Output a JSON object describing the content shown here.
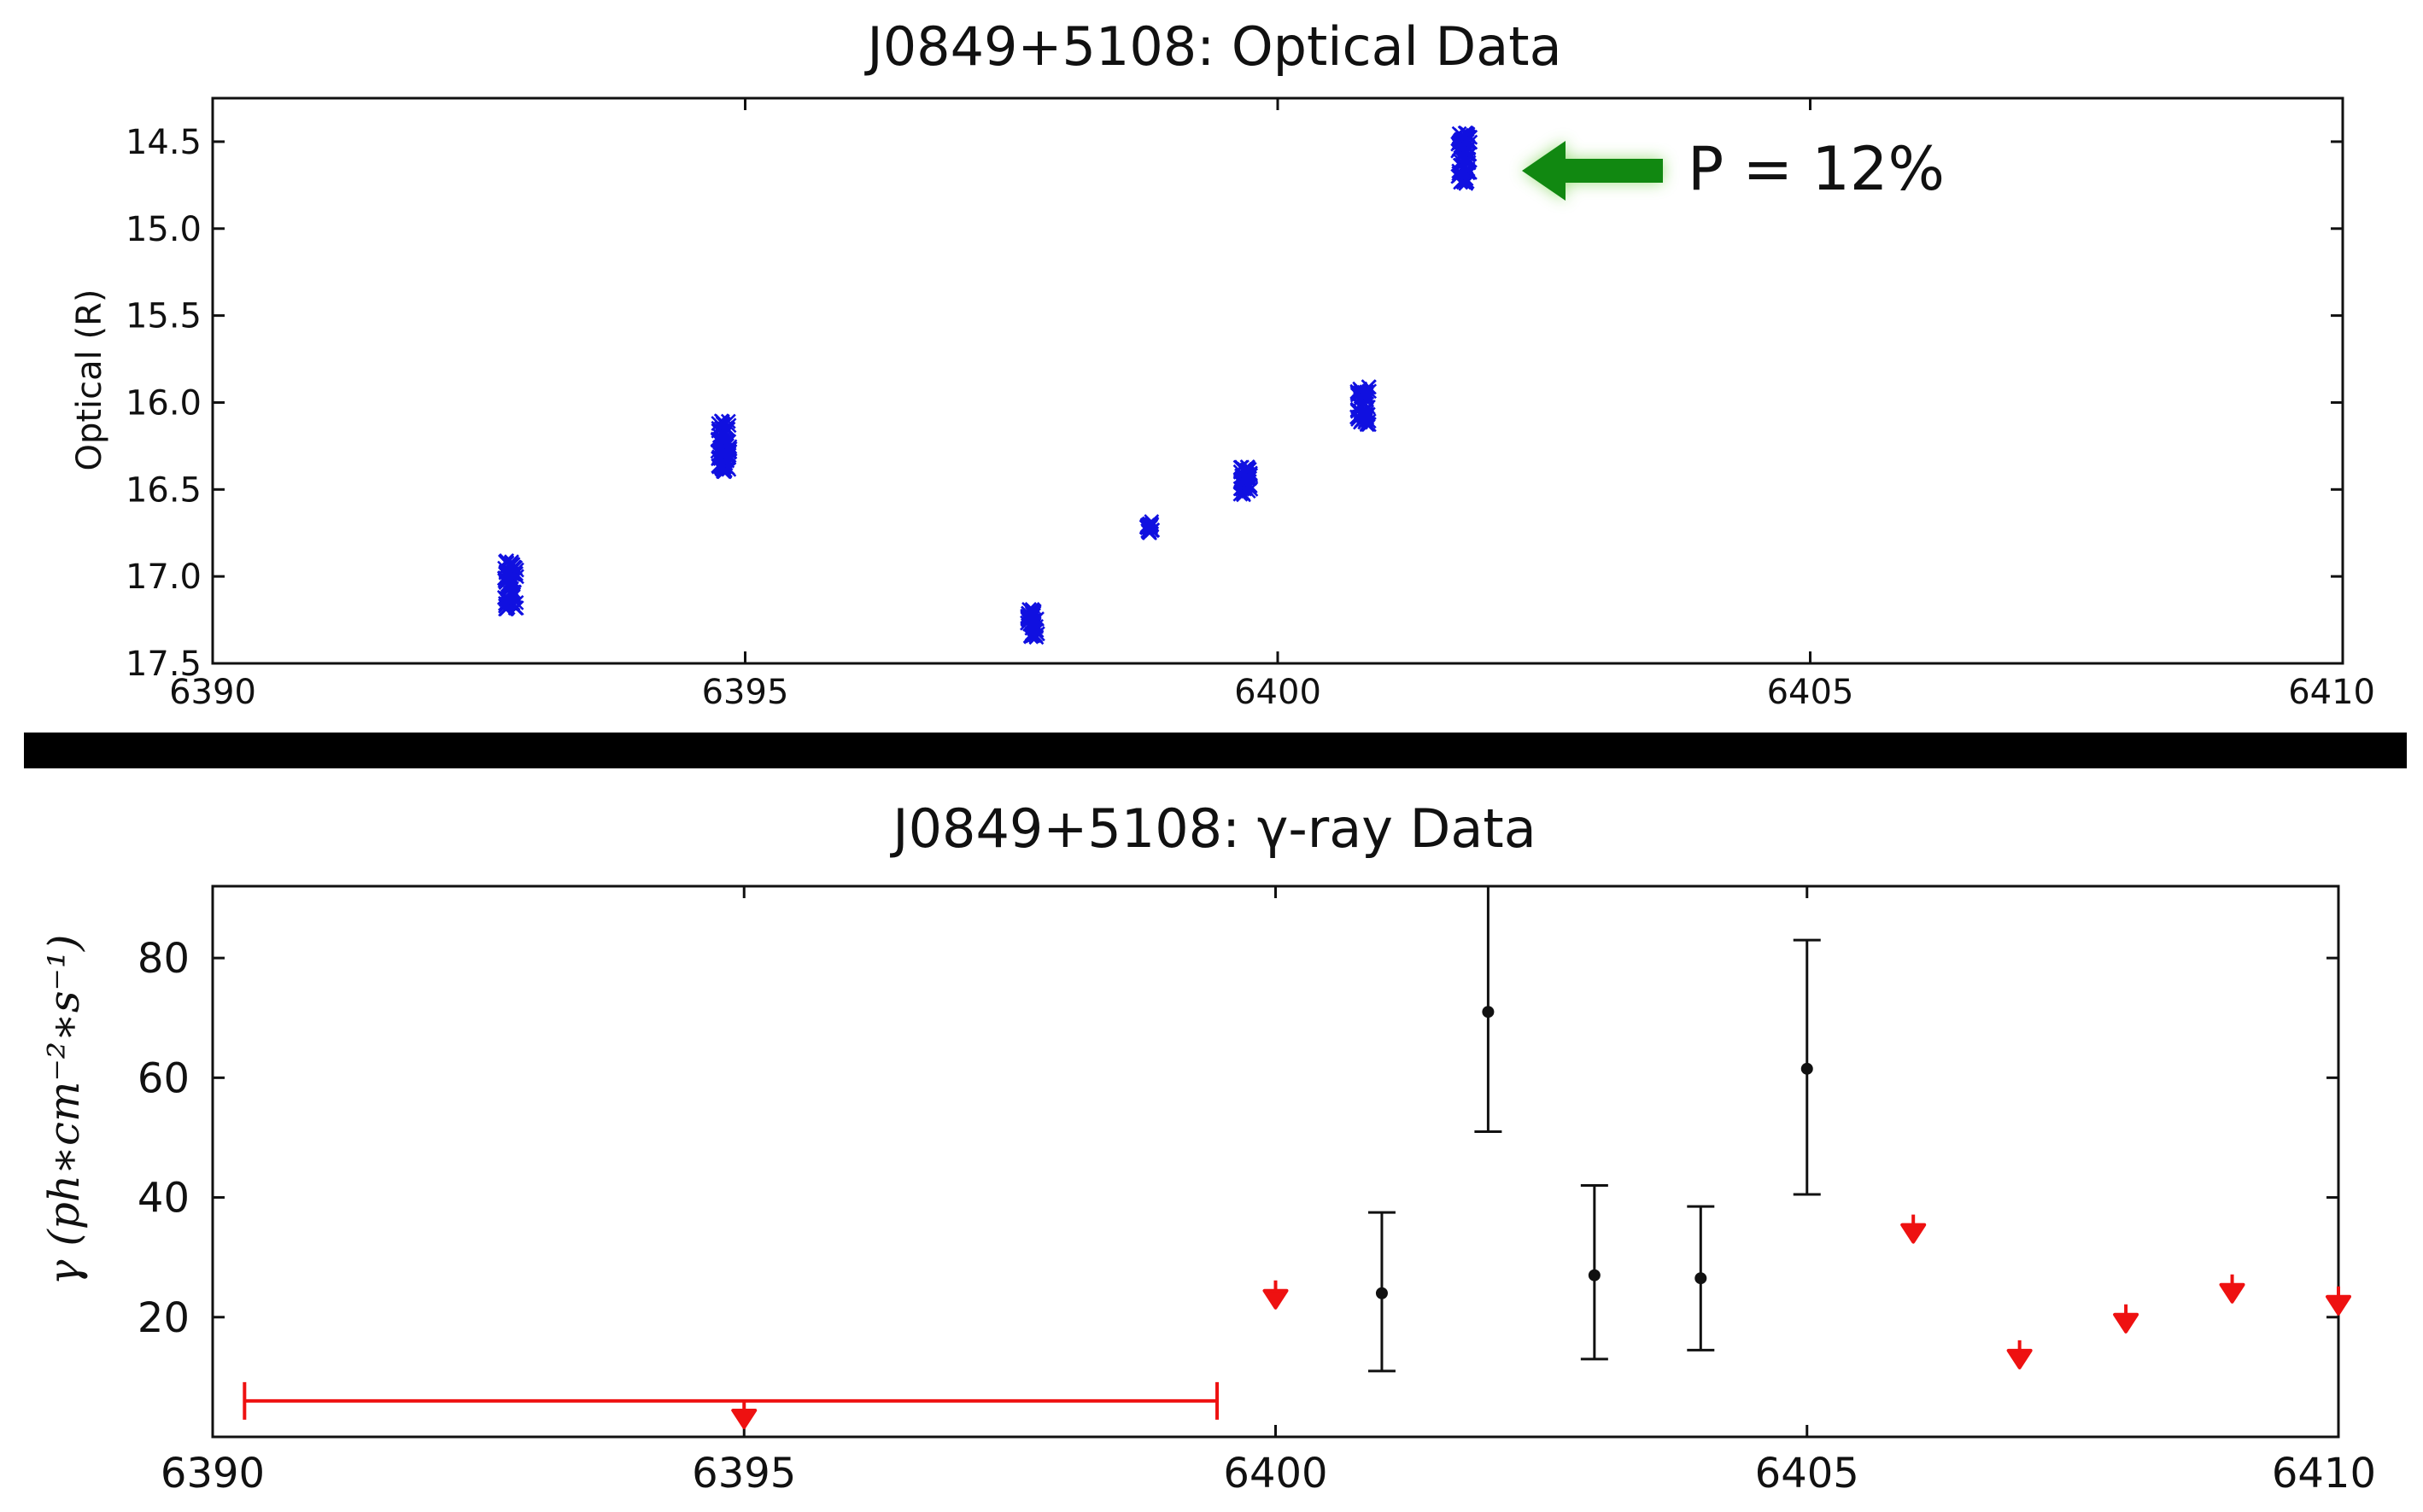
{
  "colors": {
    "optical_marker": "#1010e0",
    "detection": "#111111",
    "upper_limit": "#ee1111",
    "arrow": "#118811",
    "arrow_glow": "#99dd77",
    "separator": "#000000"
  },
  "chart_data": [
    {
      "type": "scatter",
      "title": "J0849+5108: Optical Data",
      "xlabel": "",
      "ylabel": "Optical (R)",
      "xlim": [
        6390,
        6410
      ],
      "ylim": [
        17.5,
        14.25
      ],
      "y_inverted": true,
      "xticks": [
        "6390",
        "6395",
        "6400",
        "6405",
        "6410"
      ],
      "yticks": [
        "14.5",
        "15.0",
        "15.5",
        "16.0",
        "16.5",
        "17.0",
        "17.5"
      ],
      "marker": "x",
      "grid": false,
      "annotation": {
        "text": "P = 12%",
        "points_to": {
          "x": 6401.7,
          "y": 14.6
        }
      },
      "clusters": [
        {
          "x": 6392.8,
          "y": 17.05,
          "x_spread": 0.12,
          "y_spread": 0.28,
          "n": 70
        },
        {
          "x": 6394.8,
          "y": 16.25,
          "x_spread": 0.12,
          "y_spread": 0.3,
          "n": 70
        },
        {
          "x": 6397.7,
          "y": 17.27,
          "x_spread": 0.1,
          "y_spread": 0.16,
          "n": 45
        },
        {
          "x": 6398.8,
          "y": 16.72,
          "x_spread": 0.06,
          "y_spread": 0.08,
          "n": 20
        },
        {
          "x": 6399.7,
          "y": 16.45,
          "x_spread": 0.1,
          "y_spread": 0.16,
          "n": 40
        },
        {
          "x": 6400.8,
          "y": 16.02,
          "x_spread": 0.12,
          "y_spread": 0.22,
          "n": 55
        },
        {
          "x": 6401.75,
          "y": 14.6,
          "x_spread": 0.12,
          "y_spread": 0.3,
          "n": 70
        }
      ]
    },
    {
      "type": "scatter",
      "title": "J0849+5108: γ-ray Data",
      "xlabel": "",
      "ylabel": "γ (ph∗cm⁻²∗s⁻¹)",
      "xlim": [
        6390,
        6410
      ],
      "ylim": [
        0,
        92
      ],
      "xticks": [
        "6390",
        "6395",
        "6400",
        "6405",
        "6410"
      ],
      "yticks": [
        "20",
        "40",
        "60",
        "80"
      ],
      "grid": false,
      "series": [
        {
          "kind": "detection",
          "points": [
            {
              "x": 6401,
              "y": 24,
              "low": 11,
              "high": 37.5
            },
            {
              "x": 6402,
              "y": 71,
              "low": 51,
              "high": 92
            },
            {
              "x": 6403,
              "y": 27,
              "low": 13,
              "high": 42
            },
            {
              "x": 6404,
              "y": 26.5,
              "low": 14.5,
              "high": 38.5
            },
            {
              "x": 6405,
              "y": 61.5,
              "low": 40.5,
              "high": 83
            }
          ]
        },
        {
          "kind": "upper_limit",
          "points": [
            {
              "x": 6395,
              "y": 3,
              "xerr_low": 6390.3,
              "xerr_high": 6399.45
            },
            {
              "x": 6400,
              "y": 23
            },
            {
              "x": 6406,
              "y": 34
            },
            {
              "x": 6407,
              "y": 13
            },
            {
              "x": 6408,
              "y": 19
            },
            {
              "x": 6409,
              "y": 24
            },
            {
              "x": 6410,
              "y": 22
            }
          ]
        }
      ]
    }
  ]
}
